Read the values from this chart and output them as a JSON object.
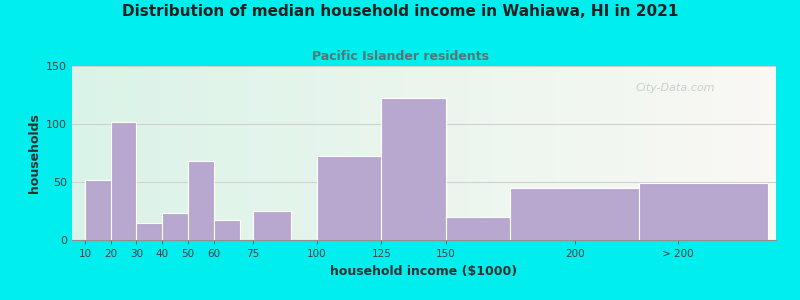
{
  "title": "Distribution of median household income in Wahiawa, HI in 2021",
  "subtitle": "Pacific Islander residents",
  "xlabel": "household income ($1000)",
  "ylabel": "households",
  "background_outer": "#00EEEE",
  "bar_color": "#B8A8D0",
  "values": [
    52,
    102,
    15,
    23,
    68,
    17,
    25,
    72,
    122,
    20,
    45,
    49
  ],
  "bar_lefts": [
    10,
    20,
    30,
    40,
    50,
    60,
    75,
    100,
    125,
    150,
    175,
    225
  ],
  "bar_widths": [
    10,
    10,
    10,
    10,
    10,
    10,
    15,
    25,
    25,
    25,
    50,
    50
  ],
  "ylim": [
    0,
    150
  ],
  "yticks": [
    0,
    50,
    100,
    150
  ],
  "xtick_labels": [
    "10",
    "20",
    "30",
    "40",
    "50",
    "60",
    "75",
    "100",
    "125",
    "150",
    "200",
    "> 200"
  ],
  "xtick_positions": [
    10,
    20,
    30,
    40,
    50,
    60,
    75,
    100,
    125,
    150,
    200,
    240
  ],
  "xlim_left": 5,
  "xlim_right": 278,
  "subtitle_color": "#507878",
  "title_color": "#202020",
  "watermark": "City-Data.com"
}
